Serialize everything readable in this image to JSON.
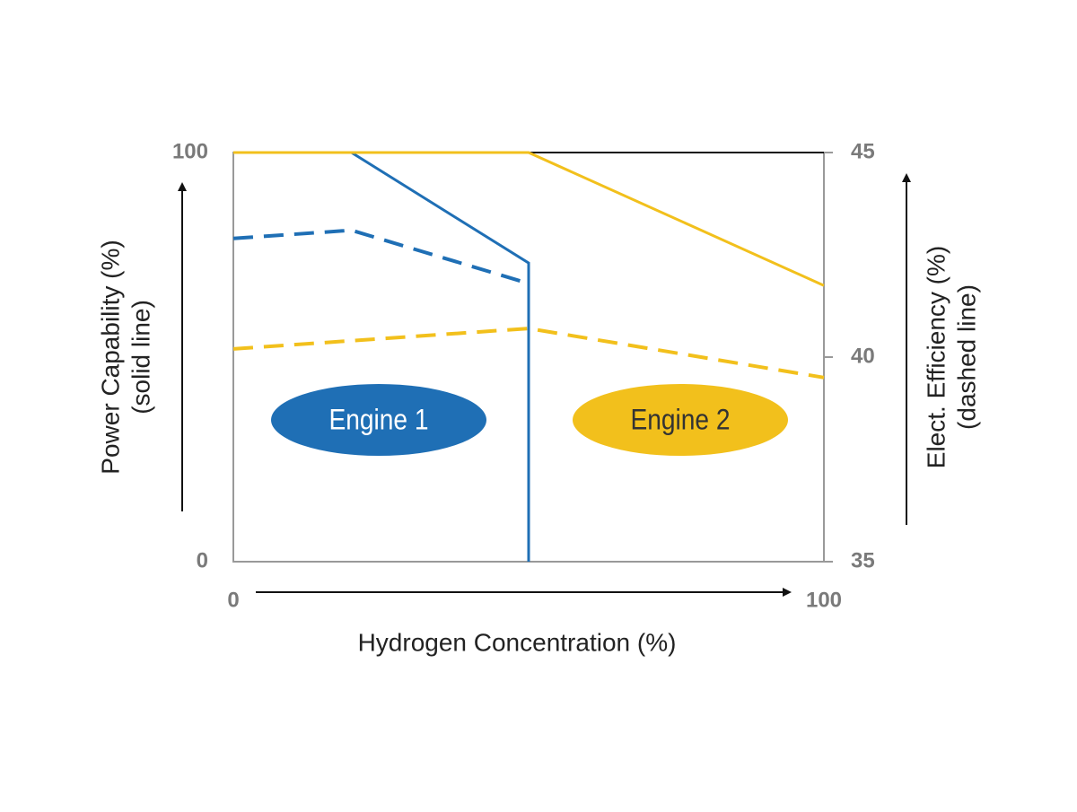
{
  "chart_data": {
    "type": "line",
    "xlabel": "Hydrogen Concentration (%)",
    "ylabel": [
      "Power Capability (%)",
      "(solid line)"
    ],
    "y2label": [
      "Elect. Efficiency (%)",
      "(dashed line)"
    ],
    "xlim": [
      0,
      100
    ],
    "xticks": [
      0,
      100
    ],
    "ylim": [
      0,
      100
    ],
    "yticks": [
      0,
      100
    ],
    "y2lim": [
      35,
      45
    ],
    "y2ticks": [
      35,
      40,
      45
    ],
    "series": [
      {
        "color": "#1f6fb5",
        "style": "solid",
        "x": [
          0,
          20,
          50,
          50
        ],
        "values": [
          100,
          100,
          73,
          0
        ]
      },
      {
        "color": "#1f6fb5",
        "style": "dashed",
        "axis": "y2",
        "x": [
          0,
          20,
          50
        ],
        "values": [
          42.9,
          43.1,
          41.8
        ]
      },
      {
        "color": "#f2c01c",
        "style": "solid",
        "x": [
          0,
          50,
          100
        ],
        "values": [
          100,
          100,
          67.5
        ]
      },
      {
        "color": "#f2c01c",
        "style": "dashed",
        "axis": "y2",
        "x": [
          0,
          50,
          100
        ],
        "values": [
          40.2,
          40.7,
          39.5
        ]
      }
    ],
    "annotations": [
      {
        "text": "Engine 1",
        "color": "#1f6fb5",
        "text_color": "#ffffff"
      },
      {
        "text": "Engine 2",
        "color": "#f2c01c",
        "text_color": "#333333"
      }
    ]
  }
}
